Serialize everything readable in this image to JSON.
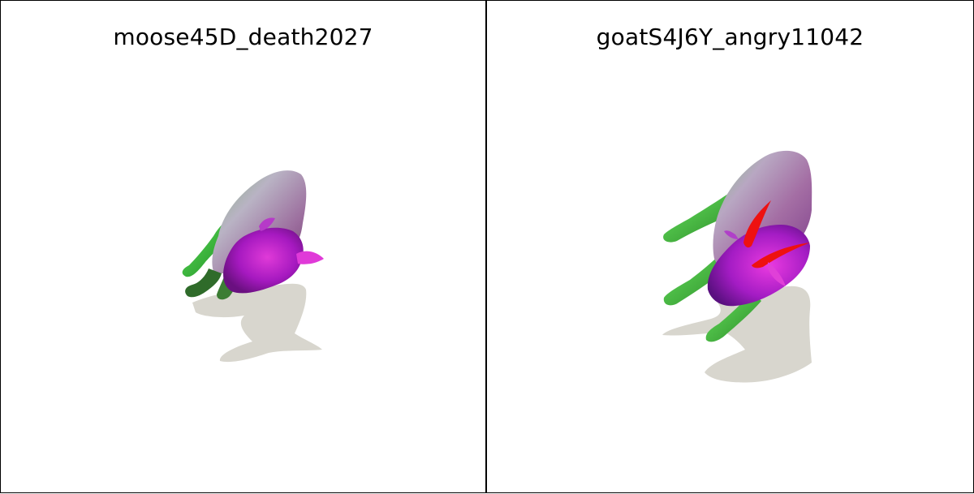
{
  "panels": [
    {
      "title": "moose45D_death2027"
    },
    {
      "title": "goatS4J6Y_angry11042"
    }
  ],
  "colors": {
    "shadow": "#d8d6ce",
    "body_top": "#c7a3c6",
    "body_mid": "#8f6a8c",
    "head": "#a11ec8",
    "leg": "#3bd33b",
    "horn": "#ee1111",
    "border": "#000000"
  }
}
